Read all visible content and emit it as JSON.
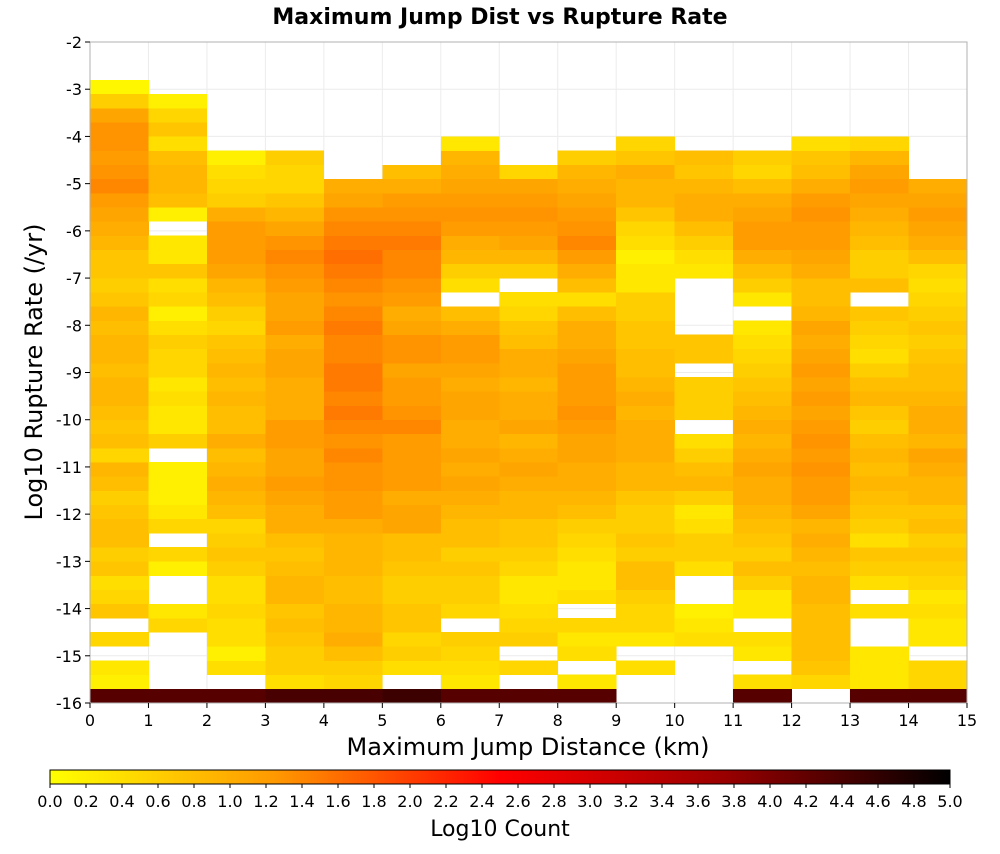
{
  "chart_data": {
    "type": "heatmap",
    "title": "Maximum Jump Dist vs Rupture Rate",
    "xlabel": "Maximum Jump Distance (km)",
    "ylabel": "Log10 Rupture Rate (/yr)",
    "colorbar_label": "Log10 Count",
    "xlim": [
      0,
      15
    ],
    "ylim": [
      -16,
      -2
    ],
    "x_ticks": [
      "0",
      "1",
      "2",
      "3",
      "4",
      "5",
      "6",
      "7",
      "8",
      "9",
      "10",
      "11",
      "12",
      "13",
      "14",
      "15"
    ],
    "y_ticks": [
      "-2",
      "-3",
      "-4",
      "-5",
      "-6",
      "-7",
      "-8",
      "-9",
      "-10",
      "-11",
      "-12",
      "-13",
      "-14",
      "-15",
      "-16"
    ],
    "colorbar_ticks": [
      "0.0",
      "0.2",
      "0.4",
      "0.6",
      "0.8",
      "1.0",
      "1.2",
      "1.4",
      "1.6",
      "1.8",
      "2.0",
      "2.2",
      "2.4",
      "2.6",
      "2.8",
      "3.0",
      "3.2",
      "3.4",
      "3.6",
      "3.8",
      "4.0",
      "4.2",
      "4.4",
      "4.6",
      "4.8",
      "5.0"
    ],
    "colorbar_range": [
      0,
      5
    ],
    "colormap": [
      "#ffff00",
      "#ff9900",
      "#ff0000",
      "#990000",
      "#000000"
    ],
    "grid": true,
    "x_bin_width": 1,
    "y_bin_height": 0.3,
    "y_bin_start": -16,
    "column_note": "Each column lists Log10 Count per y-bin from the bottom (-16.0) upward; null = no data.",
    "columns": [
      [
        4.3,
        0.2,
        0.3,
        null,
        0.5,
        null,
        0.7,
        0.5,
        0.4,
        0.7,
        0.6,
        0.8,
        0.8,
        0.7,
        0.6,
        0.8,
        0.9,
        0.5,
        0.8,
        0.7,
        0.8,
        0.9,
        0.9,
        0.8,
        0.9,
        0.9,
        0.8,
        0.9,
        0.7,
        0.6,
        0.7,
        0.7,
        0.9,
        1.0,
        1.1,
        1.2,
        1.4,
        1.3,
        1.2,
        1.3,
        1.3,
        1.1,
        0.6,
        0.1
      ],
      [
        4.3,
        null,
        null,
        null,
        null,
        0.5,
        0.3,
        null,
        null,
        0.2,
        0.5,
        null,
        0.5,
        0.3,
        0.2,
        0.2,
        0.2,
        null,
        0.6,
        0.3,
        0.3,
        0.4,
        0.3,
        0.5,
        0.5,
        0.6,
        0.4,
        0.2,
        0.5,
        0.4,
        0.7,
        0.3,
        0.3,
        null,
        0.2,
        0.8,
        0.9,
        0.9,
        0.8,
        0.4,
        0.7,
        0.5,
        0.2
      ],
      [
        4.3,
        null,
        0.4,
        0.2,
        0.4,
        0.4,
        0.5,
        0.4,
        0.4,
        0.6,
        0.7,
        0.6,
        0.5,
        0.8,
        0.9,
        1.0,
        0.9,
        0.8,
        1.0,
        0.8,
        0.8,
        0.9,
        0.8,
        0.9,
        0.8,
        0.7,
        0.5,
        0.6,
        0.8,
        0.9,
        1.1,
        1.2,
        1.2,
        1.2,
        1.0,
        0.6,
        0.5,
        0.4,
        0.2
      ],
      [
        4.4,
        0.4,
        0.6,
        0.6,
        0.7,
        0.8,
        0.7,
        0.9,
        0.9,
        0.8,
        0.7,
        0.8,
        1.0,
        1.0,
        1.1,
        1.2,
        1.1,
        1.1,
        1.2,
        1.2,
        1.0,
        1.0,
        1.0,
        1.1,
        1.1,
        1.0,
        1.2,
        1.1,
        1.1,
        1.2,
        1.3,
        1.4,
        1.3,
        1.1,
        0.9,
        0.7,
        0.5,
        0.5,
        0.6
      ],
      [
        4.4,
        0.5,
        0.6,
        0.8,
        1.0,
        0.9,
        0.9,
        0.8,
        0.8,
        0.9,
        0.9,
        0.9,
        1.0,
        1.2,
        1.2,
        1.3,
        1.3,
        1.4,
        1.3,
        1.4,
        1.5,
        1.4,
        1.5,
        1.5,
        1.4,
        1.4,
        1.5,
        1.4,
        1.3,
        1.4,
        1.5,
        1.6,
        1.5,
        1.4,
        1.3,
        1.1,
        1.0
      ],
      [
        4.5,
        null,
        0.4,
        0.6,
        0.5,
        0.7,
        0.7,
        0.6,
        0.6,
        0.7,
        0.8,
        0.8,
        1.1,
        1.1,
        1.0,
        1.2,
        1.2,
        1.2,
        1.2,
        1.4,
        1.3,
        1.2,
        1.2,
        1.1,
        1.3,
        1.3,
        1.1,
        1.0,
        1.2,
        1.3,
        1.4,
        1.4,
        1.5,
        1.4,
        1.3,
        1.2,
        1.0,
        0.8
      ],
      [
        4.3,
        0.3,
        0.4,
        0.5,
        0.6,
        null,
        0.5,
        0.6,
        0.6,
        0.7,
        0.6,
        0.8,
        0.8,
        0.9,
        1.0,
        1.1,
        1.0,
        1.1,
        1.0,
        1.0,
        1.1,
        1.1,
        1.0,
        1.1,
        1.2,
        1.2,
        1.0,
        0.8,
        null,
        0.4,
        0.6,
        0.9,
        1.0,
        1.2,
        1.3,
        1.2,
        1.1,
        1.0,
        0.9,
        0.3
      ],
      [
        4.3,
        null,
        0.5,
        null,
        0.6,
        0.5,
        0.4,
        0.3,
        0.3,
        0.5,
        0.6,
        0.7,
        0.7,
        0.9,
        0.9,
        1.0,
        1.1,
        1.0,
        0.9,
        1.1,
        1.0,
        1.0,
        0.9,
        1.0,
        1.0,
        0.8,
        0.7,
        0.5,
        0.4,
        null,
        0.6,
        0.9,
        1.1,
        1.2,
        1.3,
        1.2,
        1.1,
        0.5
      ],
      [
        4.3,
        0.3,
        null,
        0.4,
        0.3,
        0.5,
        null,
        0.4,
        0.3,
        0.3,
        0.4,
        0.5,
        0.6,
        0.8,
        0.9,
        1.0,
        1.0,
        1.1,
        1.1,
        1.2,
        1.3,
        1.2,
        1.2,
        1.2,
        1.1,
        1.0,
        1.0,
        0.8,
        0.4,
        0.8,
        1.0,
        1.2,
        1.4,
        1.3,
        1.2,
        1.1,
        1.0,
        0.9,
        0.6
      ],
      [
        null,
        null,
        0.4,
        null,
        0.3,
        0.5,
        0.5,
        0.6,
        0.8,
        0.8,
        0.6,
        0.7,
        0.6,
        0.6,
        0.7,
        0.9,
        0.9,
        1.0,
        1.0,
        1.0,
        0.9,
        1.0,
        0.9,
        0.8,
        0.8,
        0.7,
        0.7,
        0.6,
        0.6,
        0.3,
        0.3,
        0.2,
        0.4,
        0.5,
        0.7,
        0.9,
        0.9,
        1.0,
        0.7,
        0.5
      ],
      [
        null,
        null,
        null,
        null,
        0.4,
        0.3,
        0.2,
        null,
        null,
        0.4,
        0.6,
        0.6,
        0.4,
        0.3,
        0.6,
        0.9,
        0.8,
        0.6,
        0.4,
        null,
        0.6,
        0.6,
        0.6,
        null,
        0.7,
        0.7,
        null,
        null,
        null,
        null,
        0.3,
        0.4,
        0.6,
        0.8,
        1.0,
        1.0,
        0.9,
        0.7,
        0.8
      ],
      [
        4.3,
        0.4,
        null,
        0.3,
        0.4,
        null,
        0.3,
        0.3,
        0.6,
        0.8,
        0.6,
        0.7,
        0.8,
        0.9,
        1.0,
        1.0,
        1.1,
        1.0,
        0.9,
        1.0,
        0.9,
        0.8,
        0.7,
        0.6,
        0.5,
        0.4,
        0.3,
        null,
        0.3,
        0.6,
        0.8,
        1.0,
        1.2,
        1.2,
        1.1,
        1.0,
        0.8,
        0.5,
        0.6
      ],
      [
        null,
        0.5,
        0.7,
        0.8,
        0.8,
        0.8,
        0.8,
        0.9,
        0.9,
        0.8,
        0.9,
        1.0,
        0.9,
        1.1,
        1.2,
        1.2,
        1.3,
        1.2,
        1.3,
        1.2,
        1.1,
        1.2,
        1.1,
        1.2,
        1.1,
        1.0,
        1.1,
        0.9,
        0.8,
        0.8,
        1.0,
        1.1,
        1.2,
        1.2,
        1.3,
        1.2,
        1.0,
        0.8,
        0.7,
        0.4
      ],
      [
        4.3,
        0.3,
        0.3,
        0.3,
        null,
        null,
        0.4,
        null,
        0.4,
        0.6,
        0.7,
        0.4,
        0.6,
        0.7,
        0.8,
        0.9,
        0.8,
        0.9,
        0.8,
        0.6,
        0.7,
        0.9,
        0.8,
        0.6,
        0.4,
        0.5,
        0.6,
        0.7,
        null,
        0.8,
        0.6,
        0.6,
        0.8,
        0.9,
        1.0,
        1.1,
        1.2,
        1.1,
        0.9,
        0.5
      ],
      [
        4.3,
        0.5,
        0.5,
        null,
        0.3,
        0.3,
        0.4,
        0.3,
        0.5,
        0.6,
        0.7,
        0.6,
        0.8,
        0.7,
        0.9,
        0.9,
        1.0,
        1.1,
        0.9,
        1.0,
        1.0,
        0.9,
        0.8,
        0.8,
        0.7,
        0.6,
        0.7,
        0.6,
        0.5,
        0.4,
        0.5,
        0.8,
        1.0,
        1.1,
        1.2,
        1.1,
        1.0
      ]
    ]
  }
}
